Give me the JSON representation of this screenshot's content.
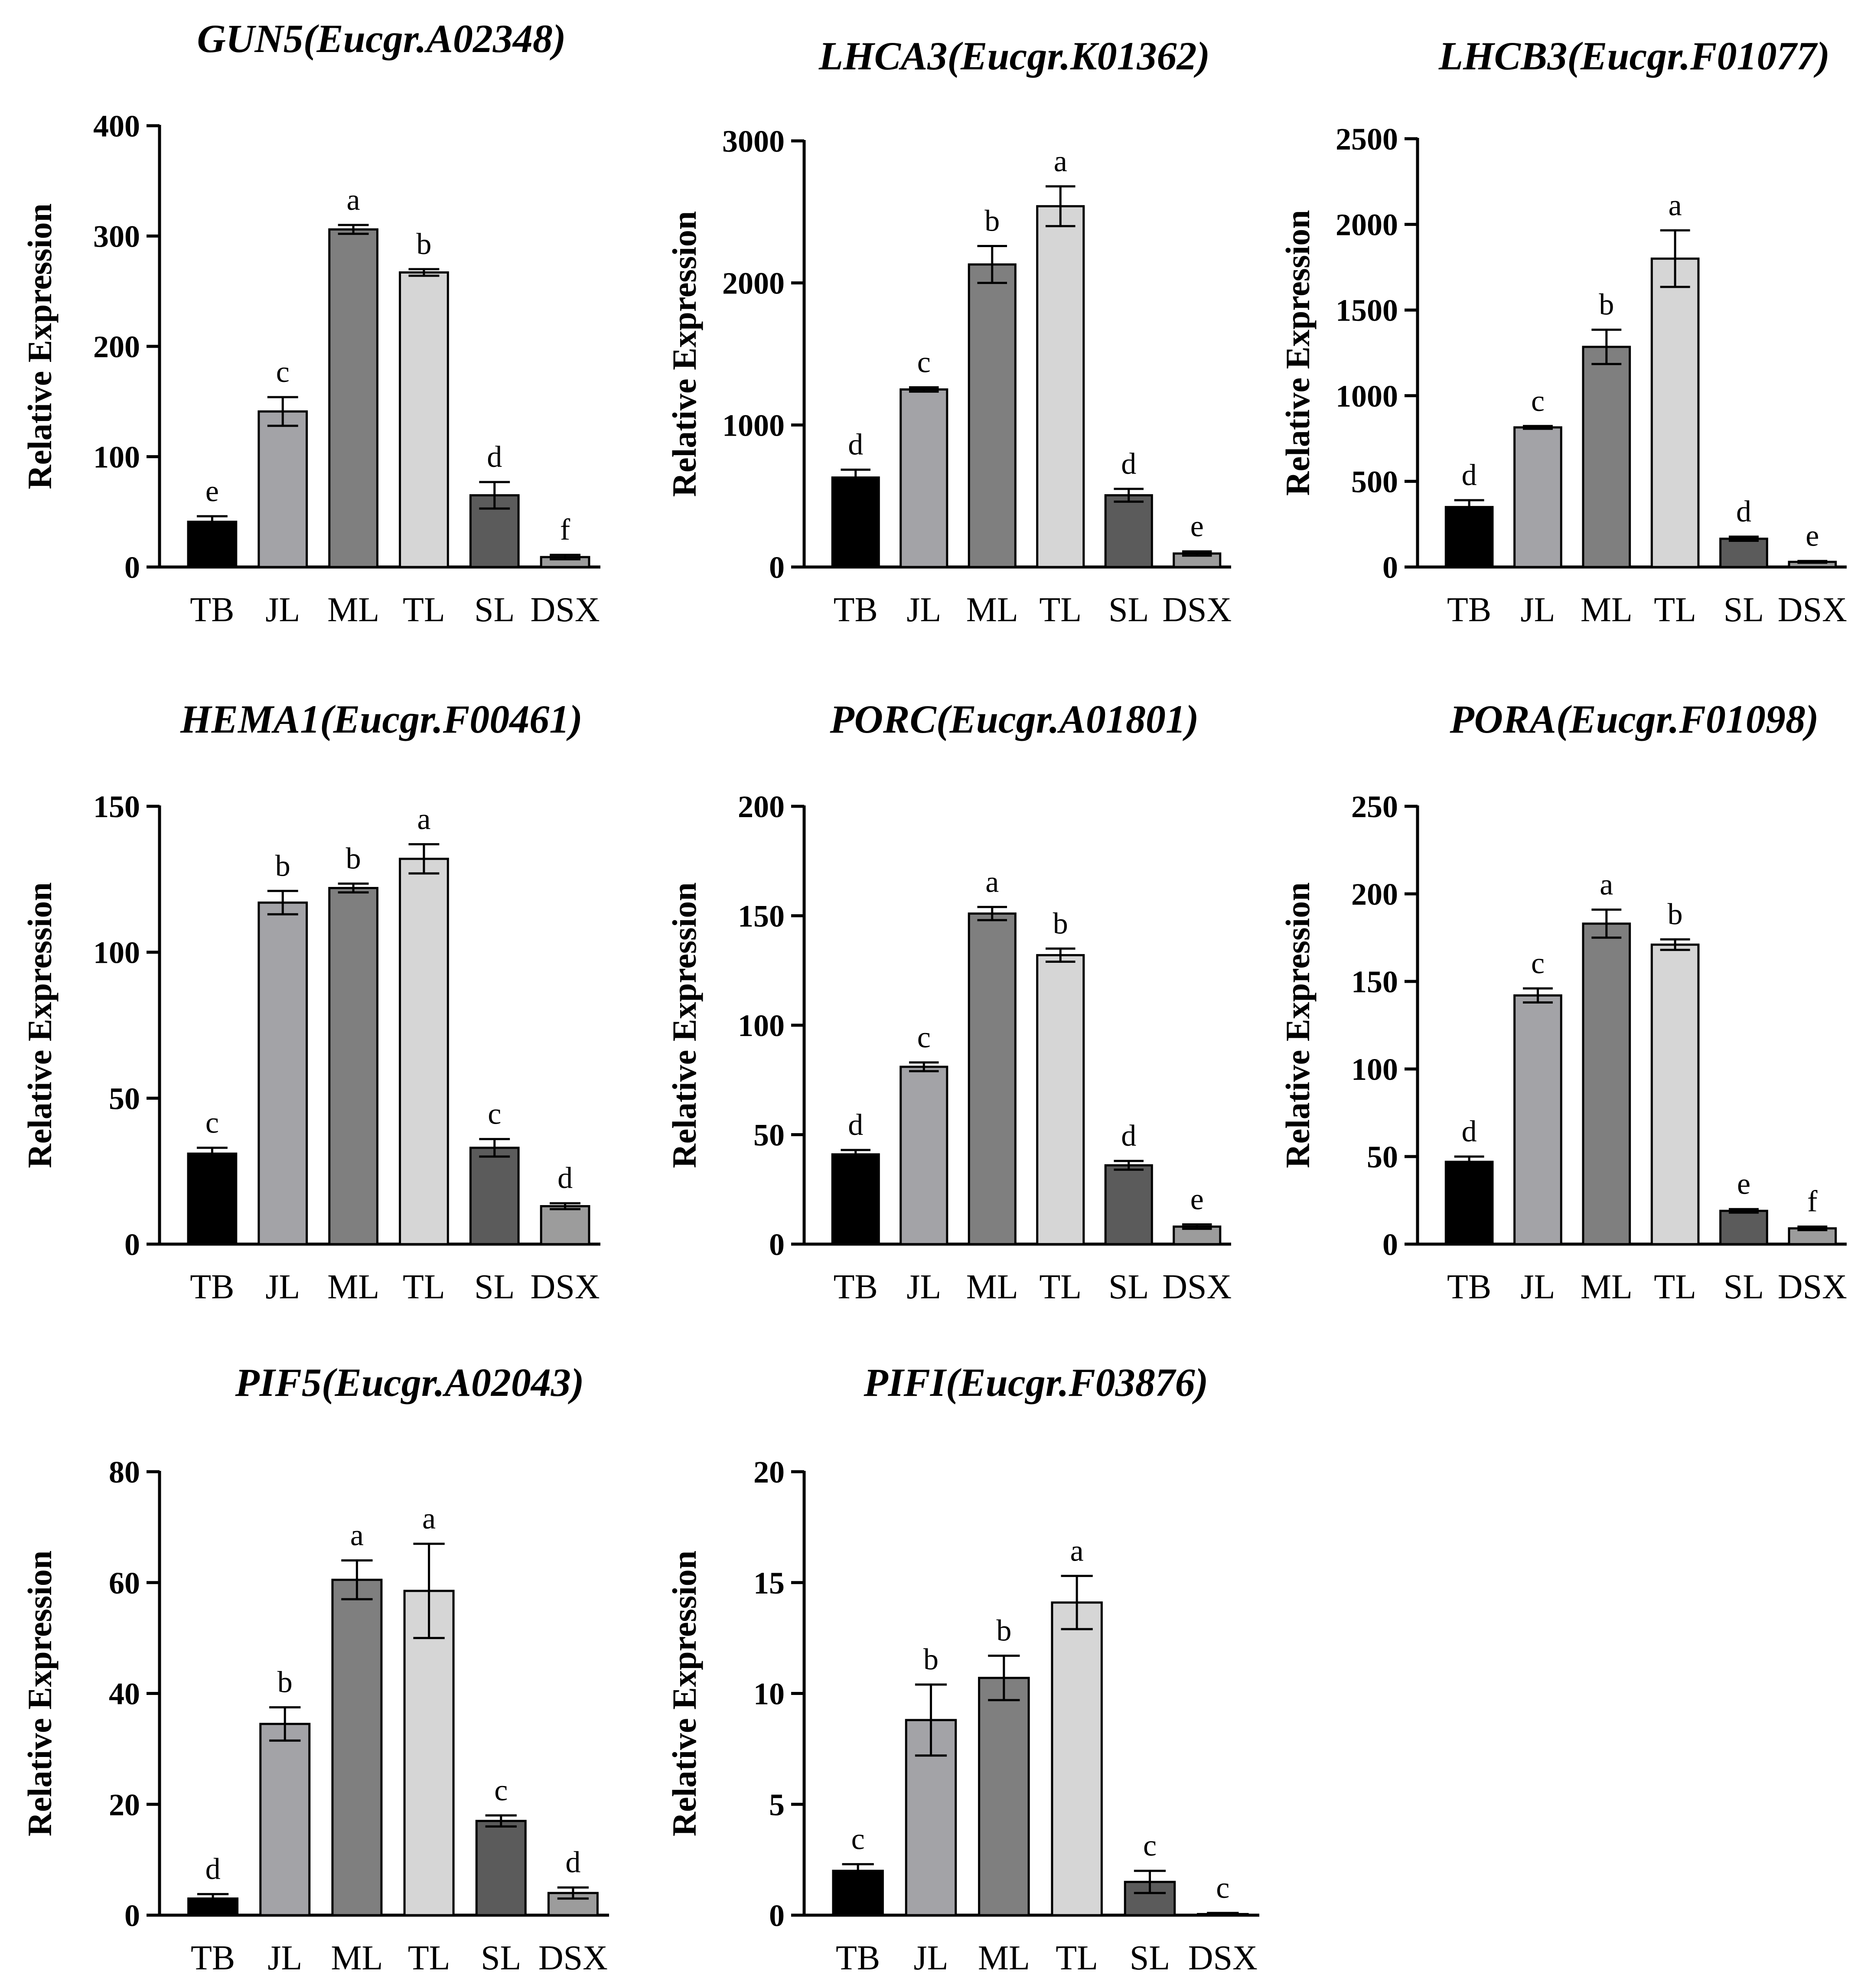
{
  "figure": {
    "ylabel": "Relative Expression",
    "categories": [
      "TB",
      "JL",
      "ML",
      "TL",
      "SL",
      "DSX"
    ],
    "bar_colors": [
      "#000000",
      "#a3a3a7",
      "#7f7f7f",
      "#d6d6d6",
      "#5b5b5b",
      "#9c9c9c"
    ]
  },
  "chart_data": [
    {
      "type": "bar",
      "title": "GUN5(Eucgr.A02348)",
      "xlabel": "",
      "ylabel": "Relative Expression",
      "categories": [
        "TB",
        "JL",
        "ML",
        "TL",
        "SL",
        "DSX"
      ],
      "values": [
        41,
        141,
        306,
        267,
        65,
        9
      ],
      "errors": [
        5,
        13,
        4,
        3,
        12,
        2
      ],
      "letters": [
        "e",
        "c",
        "a",
        "b",
        "d",
        "f"
      ],
      "ylim": [
        0,
        400
      ],
      "yticks": [
        0,
        100,
        200,
        300,
        400
      ]
    },
    {
      "type": "bar",
      "title": "LHCA3(Eucgr.K01362)",
      "xlabel": "",
      "ylabel": "Relative Expression",
      "categories": [
        "TB",
        "JL",
        "ML",
        "TL",
        "SL",
        "DSX"
      ],
      "values": [
        630,
        1250,
        2130,
        2540,
        505,
        95
      ],
      "errors": [
        55,
        15,
        130,
        140,
        45,
        15
      ],
      "letters": [
        "d",
        "c",
        "b",
        "a",
        "d",
        "e"
      ],
      "ylim": [
        0,
        3000
      ],
      "yticks": [
        0,
        1000,
        2000,
        3000
      ]
    },
    {
      "type": "bar",
      "title": "LHCB3(Eucgr.F01077)",
      "xlabel": "",
      "ylabel": "Relative Expression",
      "categories": [
        "TB",
        "JL",
        "ML",
        "TL",
        "SL",
        "DSX"
      ],
      "values": [
        350,
        815,
        1285,
        1800,
        165,
        30
      ],
      "errors": [
        40,
        8,
        100,
        165,
        12,
        5
      ],
      "letters": [
        "d",
        "c",
        "b",
        "a",
        "d",
        "e"
      ],
      "ylim": [
        0,
        2500
      ],
      "yticks": [
        0,
        500,
        1000,
        1500,
        2000,
        2500
      ]
    },
    {
      "type": "bar",
      "title": "HEMA1(Eucgr.F00461)",
      "xlabel": "",
      "ylabel": "Relative Expression",
      "categories": [
        "TB",
        "JL",
        "ML",
        "TL",
        "SL",
        "DSX"
      ],
      "values": [
        31,
        117,
        122,
        132,
        33,
        13
      ],
      "errors": [
        2,
        4,
        1.5,
        5,
        3,
        1
      ],
      "letters": [
        "c",
        "b",
        "b",
        "a",
        "c",
        "d"
      ],
      "ylim": [
        0,
        150
      ],
      "yticks": [
        0,
        50,
        100,
        150
      ]
    },
    {
      "type": "bar",
      "title": "PORC(Eucgr.A01801)",
      "xlabel": "",
      "ylabel": "Relative Expression",
      "categories": [
        "TB",
        "JL",
        "ML",
        "TL",
        "SL",
        "DSX"
      ],
      "values": [
        41,
        81,
        151,
        132,
        36,
        8
      ],
      "errors": [
        2,
        2,
        3,
        3,
        2,
        1
      ],
      "letters": [
        "d",
        "c",
        "a",
        "b",
        "d",
        "e"
      ],
      "ylim": [
        0,
        200
      ],
      "yticks": [
        0,
        50,
        100,
        150,
        200
      ]
    },
    {
      "type": "bar",
      "title": "PORA(Eucgr.F01098)",
      "xlabel": "",
      "ylabel": "Relative Expression",
      "categories": [
        "TB",
        "JL",
        "ML",
        "TL",
        "SL",
        "DSX"
      ],
      "values": [
        47,
        142,
        183,
        171,
        19,
        9
      ],
      "errors": [
        3,
        4,
        8,
        3,
        1,
        1
      ],
      "letters": [
        "d",
        "c",
        "a",
        "b",
        "e",
        "f"
      ],
      "ylim": [
        0,
        250
      ],
      "yticks": [
        0,
        50,
        100,
        150,
        200,
        250
      ]
    },
    {
      "type": "bar",
      "title": "PIF5(Eucgr.A02043)",
      "xlabel": "",
      "ylabel": "Relative Expression",
      "categories": [
        "TB",
        "JL",
        "ML",
        "TL",
        "SL",
        "DSX"
      ],
      "values": [
        3,
        34.5,
        60.5,
        58.5,
        17,
        4
      ],
      "errors": [
        0.8,
        3,
        3.5,
        8.5,
        1,
        1
      ],
      "letters": [
        "d",
        "b",
        "a",
        "a",
        "c",
        "d"
      ],
      "ylim": [
        0,
        80
      ],
      "yticks": [
        0,
        20,
        40,
        60,
        80
      ]
    },
    {
      "type": "bar",
      "title": "PIFI(Eucgr.F03876)",
      "xlabel": "",
      "ylabel": "Relative Expression",
      "categories": [
        "TB",
        "JL",
        "ML",
        "TL",
        "SL",
        "DSX"
      ],
      "values": [
        2,
        8.8,
        10.7,
        14.1,
        1.5,
        0.05
      ],
      "errors": [
        0.3,
        1.6,
        1,
        1.2,
        0.5,
        0.05
      ],
      "letters": [
        "c",
        "b",
        "b",
        "a",
        "c",
        "c"
      ],
      "ylim": [
        0,
        20
      ],
      "yticks": [
        0,
        5,
        10,
        15,
        20
      ]
    }
  ]
}
